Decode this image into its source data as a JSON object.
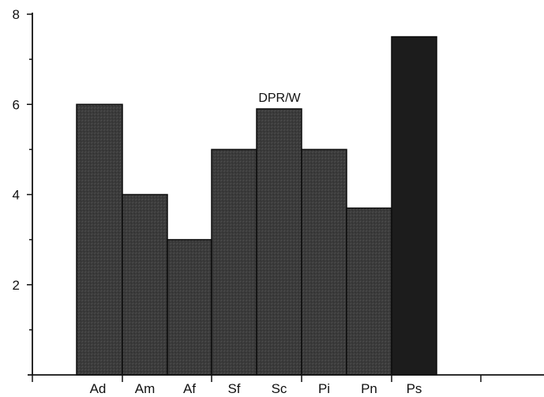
{
  "chart_data": {
    "type": "bar",
    "title": "",
    "xlabel": "",
    "ylabel": "",
    "categories": [
      "Ad",
      "Am",
      "Af",
      "Sf",
      "Sc",
      "Pi",
      "Pn",
      "Ps"
    ],
    "values": [
      6.0,
      4.0,
      3.0,
      5.0,
      5.9,
      5.0,
      3.7,
      7.5
    ],
    "ylim": [
      0,
      8
    ],
    "y_ticks": [
      2,
      4,
      6,
      8
    ],
    "grid": false,
    "annotation": "DPR/W",
    "bar_color": "#3a3a3a",
    "bar_highlight_color": "#1c1c1c"
  }
}
